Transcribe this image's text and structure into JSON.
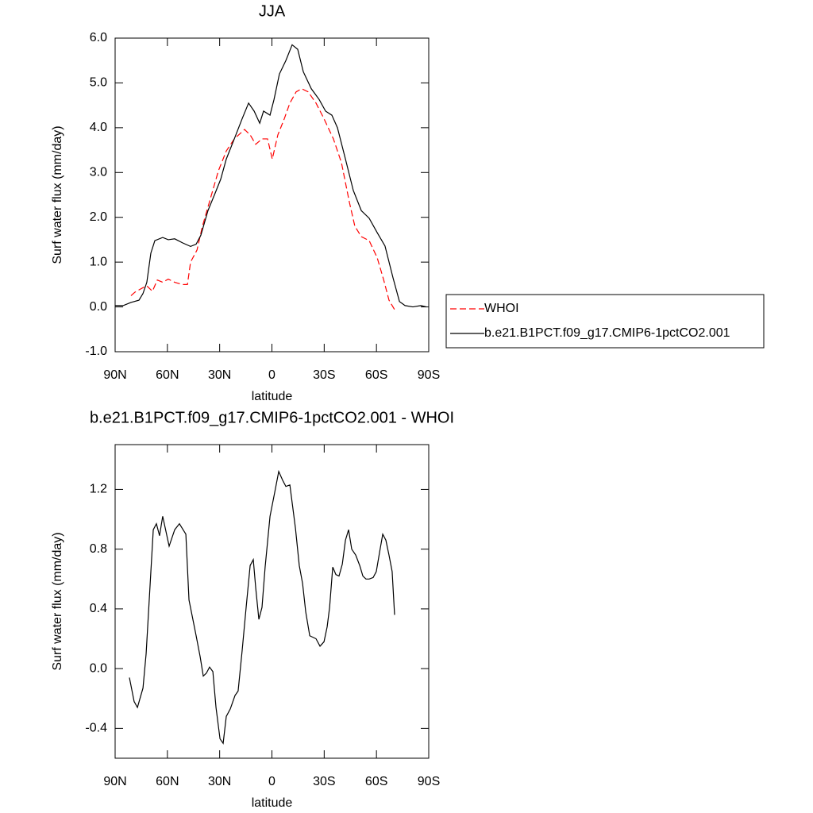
{
  "chart_data": [
    {
      "type": "line",
      "title": "JJA",
      "x_label": "latitude",
      "y_label": "Surf water flux (mm/day)",
      "xlim": [
        90,
        -90
      ],
      "ylim": [
        -1,
        6
      ],
      "xticks": [
        {
          "value": 90,
          "label": "90N"
        },
        {
          "value": 60,
          "label": "60N"
        },
        {
          "value": 30,
          "label": "30N"
        },
        0,
        {
          "value": -30,
          "label": "30S"
        },
        {
          "value": -60,
          "label": "60S"
        },
        {
          "value": -90,
          "label": "90S"
        }
      ],
      "yticks": [
        {
          "value": -1,
          "label": "-1.0"
        },
        {
          "value": 0,
          "label": "0.0"
        },
        {
          "value": 1,
          "label": "1.0"
        },
        {
          "value": 2,
          "label": "2.0"
        },
        {
          "value": 3,
          "label": "3.0"
        },
        {
          "value": 4,
          "label": "4.0"
        },
        {
          "value": 5,
          "label": "5.0"
        },
        {
          "value": 6,
          "label": "6.0"
        }
      ],
      "legend": "right",
      "series": [
        {
          "name": "WHOI",
          "color": "#ff0000",
          "line_style": "dashed",
          "x": [
            80.9,
            78.6,
            74,
            71.8,
            68.6,
            65.8,
            62.7,
            59.5,
            55.8,
            51.3,
            48.5,
            46.7,
            43,
            39.9,
            35.3,
            30.7,
            26.2,
            21.6,
            15.7,
            12.5,
            9.3,
            5.7,
            2.5,
            -0.2,
            -3.4,
            -7.1,
            -10.3,
            -13.9,
            -17.1,
            -20.8,
            -25.3,
            -29.9,
            -35.3,
            -39.9,
            -44.5,
            -47.6,
            -51.3,
            -55.8,
            -60.4,
            -64.1,
            -67.2,
            -70.4
          ],
          "values": [
            0.25,
            0.33,
            0.43,
            0.47,
            0.35,
            0.6,
            0.55,
            0.62,
            0.55,
            0.5,
            0.5,
            1.0,
            1.27,
            1.8,
            2.42,
            3.04,
            3.48,
            3.75,
            3.96,
            3.84,
            3.63,
            3.75,
            3.75,
            3.3,
            3.84,
            4.2,
            4.55,
            4.8,
            4.87,
            4.8,
            4.55,
            4.2,
            3.75,
            3.22,
            2.33,
            1.8,
            1.57,
            1.48,
            1.1,
            0.61,
            0.15,
            -0.06
          ]
        },
        {
          "name": "b.e21.B1PCT.f09_g17.CMIP6-1pctCO2.001",
          "color": "#000000",
          "line_style": "solid",
          "x": [
            90,
            85.4,
            80.9,
            76.3,
            74,
            71.8,
            69.5,
            67.2,
            62.7,
            59.5,
            55.8,
            51.3,
            46.7,
            43.5,
            40.8,
            36.7,
            33,
            29.4,
            26.2,
            21.6,
            17.1,
            13.4,
            10.2,
            7.0,
            4.8,
            1.1,
            -1.2,
            -4.3,
            -8.0,
            -11.6,
            -14.8,
            -18,
            -22.6,
            -27.1,
            -30.8,
            -34.4,
            -37.6,
            -42.2,
            -46.7,
            -51.3,
            -55.8,
            -60.4,
            -64.9,
            -69.5,
            -73.2,
            -76.4,
            -80.9,
            -85.5,
            -88.7
          ],
          "values": [
            0.03,
            0.03,
            0.1,
            0.15,
            0.3,
            0.55,
            1.2,
            1.48,
            1.55,
            1.5,
            1.52,
            1.43,
            1.35,
            1.4,
            1.6,
            2.15,
            2.5,
            2.85,
            3.3,
            3.75,
            4.2,
            4.55,
            4.37,
            4.1,
            4.37,
            4.28,
            4.63,
            5.2,
            5.5,
            5.85,
            5.75,
            5.25,
            4.87,
            4.63,
            4.37,
            4.28,
            4.0,
            3.3,
            2.6,
            2.15,
            1.98,
            1.66,
            1.36,
            0.65,
            0.12,
            0.03,
            0,
            0.03,
            0
          ]
        }
      ]
    },
    {
      "type": "line",
      "title": "b.e21.B1PCT.f09_g17.CMIP6-1pctCO2.001 - WHOI",
      "x_label": "latitude",
      "y_label": "Surf water flux (mm/day)",
      "xlim": [
        90,
        -90
      ],
      "ylim": [
        -0.6,
        1.5
      ],
      "xticks": [
        {
          "value": 90,
          "label": "90N"
        },
        {
          "value": 60,
          "label": "60N"
        },
        {
          "value": 30,
          "label": "30N"
        },
        0,
        {
          "value": -30,
          "label": "30S"
        },
        {
          "value": -60,
          "label": "60S"
        },
        {
          "value": -90,
          "label": "90S"
        }
      ],
      "yticks": [
        -0.4,
        {
          "value": 0,
          "label": "0.0"
        },
        0.4,
        0.8,
        1.2
      ],
      "series": [
        {
          "color": "#000000",
          "line_style": "solid",
          "x": [
            81.8,
            79.1,
            77.2,
            74,
            72.2,
            68.1,
            66.3,
            64.5,
            62.7,
            59,
            55.8,
            53.1,
            49.4,
            47.6,
            43.5,
            41.2,
            39.4,
            37.6,
            35.8,
            33.9,
            32.1,
            29.8,
            28,
            26.2,
            23.9,
            21.2,
            19.4,
            17.1,
            14.8,
            12.5,
            10.7,
            9.3,
            7.5,
            5.7,
            3.9,
            1.1,
            -1.6,
            -3.9,
            -6.2,
            -8.0,
            -10.3,
            -13.5,
            -15.7,
            -17.6,
            -19.4,
            -21.7,
            -25.3,
            -27.6,
            -29.9,
            -31.7,
            -33.1,
            -34.9,
            -36.7,
            -38.5,
            -40.4,
            -42.2,
            -44.0,
            -45.8,
            -48.1,
            -50.4,
            -52.2,
            -54,
            -55.8,
            -58.1,
            -59.9,
            -61.8,
            -63.6,
            -65.4,
            -67.2,
            -69,
            -70.4
          ],
          "values": [
            -0.06,
            -0.22,
            -0.26,
            -0.13,
            0.1,
            0.93,
            0.97,
            0.89,
            1.02,
            0.82,
            0.93,
            0.97,
            0.9,
            0.46,
            0.22,
            0.08,
            -0.05,
            -0.03,
            0.01,
            -0.02,
            -0.26,
            -0.47,
            -0.5,
            -0.32,
            -0.27,
            -0.18,
            -0.15,
            0.12,
            0.41,
            0.69,
            0.73,
            0.54,
            0.33,
            0.41,
            0.68,
            1.02,
            1.18,
            1.32,
            1.26,
            1.22,
            1.23,
            0.94,
            0.69,
            0.57,
            0.38,
            0.22,
            0.2,
            0.15,
            0.18,
            0.28,
            0.41,
            0.68,
            0.63,
            0.62,
            0.7,
            0.86,
            0.93,
            0.8,
            0.76,
            0.69,
            0.62,
            0.6,
            0.6,
            0.61,
            0.65,
            0.78,
            0.9,
            0.86,
            0.76,
            0.65,
            0.36
          ]
        }
      ]
    }
  ]
}
